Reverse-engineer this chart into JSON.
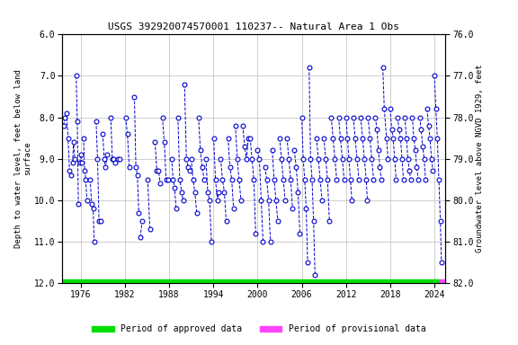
{
  "title": "USGS 392920074570001 110237-- Natural Area 1 Obs",
  "ylabel_left": "Depth to water level, feet below land\nsurface",
  "ylabel_right": "Groundwater level above NGVD 1929, feet",
  "ylim_left": [
    6.0,
    12.0
  ],
  "ylim_right": [
    82.0,
    76.0
  ],
  "xlim": [
    1973.5,
    2025.5
  ],
  "xticks": [
    1976,
    1982,
    1988,
    1994,
    2000,
    2006,
    2012,
    2018,
    2024
  ],
  "yticks_left": [
    6.0,
    7.0,
    8.0,
    9.0,
    10.0,
    11.0,
    12.0
  ],
  "yticks_right": [
    82.0,
    81.0,
    80.0,
    79.0,
    78.0,
    77.0,
    76.0
  ],
  "line_color": "#0000cc",
  "marker_color": "#0000cc",
  "bg_color": "#ffffff",
  "grid_color": "#bbbbbb",
  "approved_color": "#00dd00",
  "provisional_color": "#ff44ff",
  "segments": [
    [
      [
        1973.7,
        8.2
      ],
      [
        1973.85,
        8.0
      ]
    ],
    [
      [
        1974.1,
        7.9
      ],
      [
        1974.3,
        8.5
      ],
      [
        1974.5,
        9.3
      ],
      [
        1974.75,
        9.4
      ]
    ],
    [
      [
        1974.9,
        9.1
      ],
      [
        1975.05,
        8.6
      ],
      [
        1975.2,
        9.0
      ]
    ],
    [
      [
        1975.4,
        7.0
      ],
      [
        1975.55,
        8.1
      ],
      [
        1975.7,
        10.1
      ]
    ],
    [
      [
        1975.9,
        9.1
      ],
      [
        1976.05,
        8.9
      ],
      [
        1976.2,
        9.1
      ]
    ],
    [
      [
        1976.4,
        8.5
      ],
      [
        1976.55,
        9.3
      ],
      [
        1976.7,
        9.5
      ],
      [
        1976.85,
        10.0
      ]
    ],
    [
      [
        1977.3,
        9.5
      ],
      [
        1977.5,
        10.1
      ],
      [
        1977.7,
        10.2
      ],
      [
        1977.85,
        11.0
      ]
    ],
    [
      [
        1978.1,
        8.1
      ],
      [
        1978.3,
        9.0
      ],
      [
        1978.5,
        10.5
      ],
      [
        1978.7,
        10.5
      ]
    ],
    [
      [
        1979.0,
        8.4
      ],
      [
        1979.2,
        9.0
      ],
      [
        1979.4,
        9.2
      ],
      [
        1979.6,
        8.9
      ]
    ],
    [
      [
        1980.1,
        8.0
      ],
      [
        1980.3,
        9.0
      ],
      [
        1980.5,
        9.0
      ],
      [
        1980.7,
        9.1
      ]
    ],
    [
      [
        1981.1,
        9.0
      ],
      [
        1981.3,
        9.0
      ]
    ],
    [
      [
        1982.1,
        8.0
      ],
      [
        1982.35,
        8.4
      ],
      [
        1982.6,
        9.2
      ]
    ],
    [
      [
        1983.3,
        7.5
      ],
      [
        1983.5,
        9.2
      ],
      [
        1983.7,
        9.4
      ],
      [
        1983.9,
        10.3
      ]
    ],
    [
      [
        1984.1,
        10.9
      ],
      [
        1984.35,
        10.5
      ]
    ],
    [
      [
        1985.1,
        9.5
      ],
      [
        1985.4,
        10.7
      ]
    ],
    [
      [
        1986.1,
        8.6
      ],
      [
        1986.35,
        9.3
      ],
      [
        1986.6,
        9.3
      ],
      [
        1986.8,
        9.6
      ]
    ],
    [
      [
        1987.1,
        8.0
      ],
      [
        1987.35,
        8.6
      ],
      [
        1987.6,
        9.5
      ],
      [
        1987.85,
        9.5
      ]
    ],
    [
      [
        1988.35,
        9.0
      ],
      [
        1988.55,
        9.5
      ],
      [
        1988.75,
        9.7
      ],
      [
        1988.95,
        10.2
      ]
    ],
    [
      [
        1989.2,
        8.0
      ],
      [
        1989.45,
        9.5
      ],
      [
        1989.7,
        9.8
      ],
      [
        1989.9,
        10.0
      ]
    ],
    [
      [
        1990.1,
        7.2
      ],
      [
        1990.35,
        9.0
      ],
      [
        1990.6,
        9.2
      ],
      [
        1990.8,
        9.3
      ]
    ],
    [
      [
        1991.0,
        9.0
      ],
      [
        1991.25,
        9.5
      ],
      [
        1991.5,
        9.8
      ],
      [
        1991.75,
        10.3
      ]
    ],
    [
      [
        1992.0,
        8.0
      ],
      [
        1992.25,
        8.8
      ],
      [
        1992.5,
        9.2
      ],
      [
        1992.75,
        9.5
      ]
    ],
    [
      [
        1993.0,
        9.0
      ],
      [
        1993.25,
        9.8
      ],
      [
        1993.5,
        10.0
      ],
      [
        1993.75,
        11.0
      ]
    ],
    [
      [
        1994.05,
        8.5
      ],
      [
        1994.3,
        9.5
      ],
      [
        1994.55,
        10.0
      ],
      [
        1994.75,
        9.8
      ]
    ],
    [
      [
        1995.0,
        9.0
      ],
      [
        1995.25,
        9.5
      ],
      [
        1995.5,
        9.8
      ],
      [
        1995.75,
        10.5
      ]
    ],
    [
      [
        1996.0,
        8.5
      ],
      [
        1996.25,
        9.2
      ],
      [
        1996.5,
        9.5
      ],
      [
        1996.75,
        10.2
      ]
    ],
    [
      [
        1997.0,
        8.2
      ],
      [
        1997.25,
        9.0
      ],
      [
        1997.5,
        9.5
      ],
      [
        1997.75,
        10.0
      ]
    ],
    [
      [
        1998.0,
        8.2
      ],
      [
        1998.25,
        8.7
      ],
      [
        1998.5,
        9.0
      ],
      [
        1998.75,
        8.5
      ]
    ],
    [
      [
        1999.0,
        8.5
      ],
      [
        1999.25,
        9.0
      ],
      [
        1999.5,
        9.5
      ],
      [
        1999.75,
        10.8
      ]
    ],
    [
      [
        2000.0,
        8.8
      ],
      [
        2000.25,
        9.0
      ],
      [
        2000.5,
        10.0
      ],
      [
        2000.75,
        11.0
      ]
    ],
    [
      [
        2001.0,
        9.2
      ],
      [
        2001.25,
        9.5
      ],
      [
        2001.5,
        10.0
      ],
      [
        2001.75,
        11.0
      ]
    ],
    [
      [
        2002.0,
        8.8
      ],
      [
        2002.25,
        9.5
      ],
      [
        2002.5,
        10.0
      ],
      [
        2002.75,
        10.5
      ]
    ],
    [
      [
        2003.0,
        8.5
      ],
      [
        2003.25,
        9.0
      ],
      [
        2003.5,
        9.5
      ],
      [
        2003.75,
        10.0
      ]
    ],
    [
      [
        2004.0,
        8.5
      ],
      [
        2004.25,
        9.0
      ],
      [
        2004.5,
        9.5
      ],
      [
        2004.75,
        10.2
      ]
    ],
    [
      [
        2005.0,
        8.8
      ],
      [
        2005.25,
        9.2
      ],
      [
        2005.5,
        9.8
      ],
      [
        2005.75,
        10.8
      ]
    ],
    [
      [
        2006.0,
        8.0
      ],
      [
        2006.2,
        9.0
      ],
      [
        2006.4,
        9.5
      ],
      [
        2006.6,
        10.2
      ],
      [
        2006.8,
        11.5
      ]
    ],
    [
      [
        2007.0,
        6.8
      ],
      [
        2007.2,
        9.0
      ],
      [
        2007.4,
        9.5
      ],
      [
        2007.6,
        10.5
      ],
      [
        2007.8,
        11.8
      ]
    ],
    [
      [
        2008.0,
        8.5
      ],
      [
        2008.25,
        9.0
      ],
      [
        2008.5,
        9.5
      ],
      [
        2008.75,
        10.0
      ]
    ],
    [
      [
        2009.0,
        8.5
      ],
      [
        2009.25,
        9.0
      ],
      [
        2009.5,
        9.5
      ],
      [
        2009.75,
        10.5
      ]
    ],
    [
      [
        2010.0,
        8.0
      ],
      [
        2010.25,
        8.5
      ],
      [
        2010.5,
        9.0
      ],
      [
        2010.75,
        9.5
      ]
    ],
    [
      [
        2011.0,
        8.0
      ],
      [
        2011.25,
        8.5
      ],
      [
        2011.5,
        9.0
      ],
      [
        2011.75,
        9.5
      ]
    ],
    [
      [
        2012.0,
        8.0
      ],
      [
        2012.2,
        8.5
      ],
      [
        2012.4,
        9.0
      ],
      [
        2012.6,
        9.5
      ],
      [
        2012.8,
        10.0
      ]
    ],
    [
      [
        2013.0,
        8.0
      ],
      [
        2013.25,
        8.5
      ],
      [
        2013.5,
        9.0
      ],
      [
        2013.75,
        9.5
      ]
    ],
    [
      [
        2014.0,
        8.0
      ],
      [
        2014.25,
        8.5
      ],
      [
        2014.5,
        9.0
      ],
      [
        2014.75,
        9.5
      ],
      [
        2014.9,
        10.0
      ]
    ],
    [
      [
        2015.0,
        8.0
      ],
      [
        2015.25,
        8.5
      ],
      [
        2015.5,
        9.0
      ],
      [
        2015.75,
        9.5
      ]
    ],
    [
      [
        2016.0,
        8.0
      ],
      [
        2016.2,
        8.3
      ],
      [
        2016.4,
        8.8
      ],
      [
        2016.6,
        9.2
      ],
      [
        2016.8,
        9.5
      ]
    ],
    [
      [
        2017.0,
        6.8
      ],
      [
        2017.2,
        7.8
      ],
      [
        2017.5,
        8.5
      ],
      [
        2017.7,
        9.0
      ]
    ],
    [
      [
        2018.0,
        7.8
      ],
      [
        2018.2,
        8.3
      ],
      [
        2018.4,
        8.5
      ],
      [
        2018.6,
        9.0
      ],
      [
        2018.8,
        9.5
      ]
    ],
    [
      [
        2019.0,
        8.0
      ],
      [
        2019.2,
        8.3
      ],
      [
        2019.4,
        8.5
      ],
      [
        2019.6,
        9.0
      ],
      [
        2019.8,
        9.5
      ]
    ],
    [
      [
        2020.0,
        8.0
      ],
      [
        2020.2,
        8.5
      ],
      [
        2020.4,
        9.0
      ],
      [
        2020.6,
        9.3
      ],
      [
        2020.8,
        9.5
      ]
    ],
    [
      [
        2021.0,
        8.0
      ],
      [
        2021.2,
        8.5
      ],
      [
        2021.4,
        8.8
      ],
      [
        2021.6,
        9.2
      ],
      [
        2021.8,
        9.5
      ]
    ],
    [
      [
        2022.0,
        8.0
      ],
      [
        2022.2,
        8.3
      ],
      [
        2022.4,
        8.7
      ],
      [
        2022.6,
        9.0
      ],
      [
        2022.8,
        9.5
      ]
    ],
    [
      [
        2023.0,
        7.8
      ],
      [
        2023.2,
        8.2
      ],
      [
        2023.4,
        8.5
      ],
      [
        2023.6,
        9.0
      ],
      [
        2023.8,
        9.3
      ]
    ],
    [
      [
        2024.0,
        7.0
      ],
      [
        2024.2,
        7.8
      ],
      [
        2024.4,
        8.5
      ],
      [
        2024.6,
        9.5
      ],
      [
        2024.8,
        10.5
      ],
      [
        2024.95,
        11.5
      ]
    ]
  ]
}
